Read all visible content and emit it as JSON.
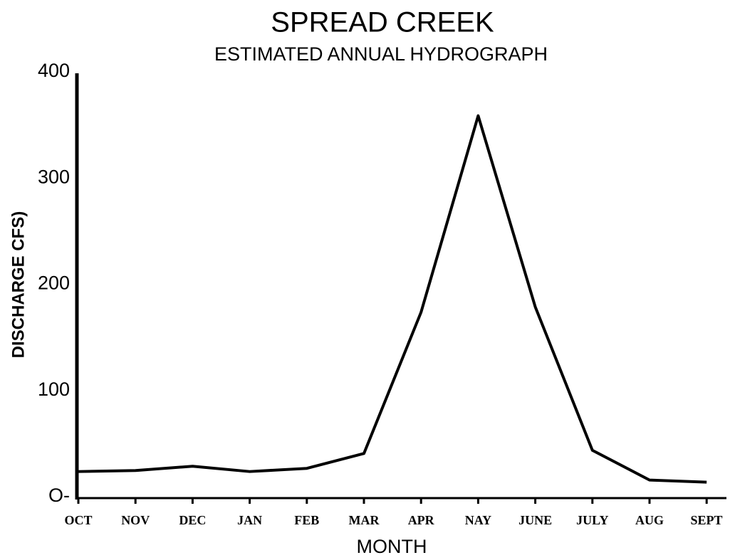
{
  "chart_data": {
    "type": "line",
    "title": "SPREAD CREEK",
    "subtitle": "ESTIMATED ANNUAL HYDROGRAPH",
    "y_label": "DISCHARGE CFS)",
    "x_label": "MONTH",
    "categories": [
      "OCT",
      "NOV",
      "DEC",
      "JAN",
      "FEB",
      "MAR",
      "APR",
      "NAY",
      "JUNE",
      "JULY",
      "AUG",
      "SEPT"
    ],
    "values": [
      25,
      26,
      30,
      25,
      28,
      42,
      175,
      360,
      180,
      45,
      17,
      15
    ],
    "color": "#000000",
    "ylim": [
      0,
      400
    ],
    "yticks": [
      {
        "value": 0,
        "label": "O-"
      },
      100,
      200,
      300,
      400
    ],
    "grid": false
  }
}
